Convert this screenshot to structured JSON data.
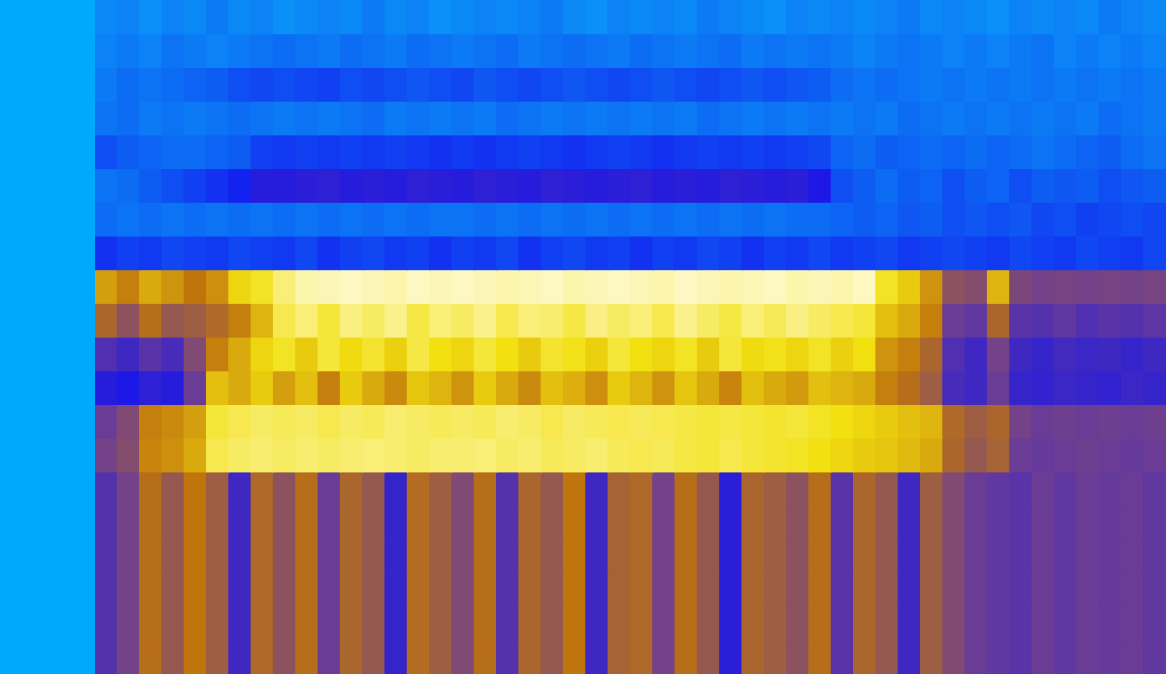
{
  "chart_data": {
    "type": "heatmap",
    "tick_labels": false,
    "grid": false,
    "cells": [
      [
        0.04,
        0.05,
        0.03,
        0.05,
        0.04,
        0.06,
        0.04,
        0.05,
        0.03,
        0.04,
        0.05,
        0.04,
        0.06,
        0.04,
        0.05,
        0.03,
        0.04,
        0.05,
        0.04,
        0.05,
        0.06,
        0.04,
        0.03,
        0.05,
        0.04,
        0.05,
        0.04,
        0.06,
        0.05,
        0.04,
        0.03,
        0.05,
        0.04,
        0.05,
        0.04,
        0.05,
        0.06,
        0.04,
        0.05,
        0.04,
        0.03,
        0.05,
        0.04,
        0.05,
        0.04,
        0.06,
        0.05,
        0.04
      ],
      [
        0.05,
        0.06,
        0.05,
        0.07,
        0.06,
        0.05,
        0.06,
        0.07,
        0.08,
        0.07,
        0.06,
        0.08,
        0.07,
        0.06,
        0.08,
        0.07,
        0.06,
        0.07,
        0.08,
        0.06,
        0.07,
        0.08,
        0.07,
        0.06,
        0.08,
        0.07,
        0.06,
        0.07,
        0.08,
        0.06,
        0.07,
        0.06,
        0.07,
        0.06,
        0.05,
        0.06,
        0.07,
        0.06,
        0.05,
        0.06,
        0.05,
        0.06,
        0.07,
        0.05,
        0.06,
        0.05,
        0.06,
        0.05
      ],
      [
        0.06,
        0.08,
        0.07,
        0.08,
        0.09,
        0.1,
        0.12,
        0.13,
        0.12,
        0.13,
        0.14,
        0.12,
        0.13,
        0.12,
        0.11,
        0.12,
        0.13,
        0.11,
        0.12,
        0.13,
        0.12,
        0.11,
        0.12,
        0.13,
        0.12,
        0.11,
        0.12,
        0.13,
        0.12,
        0.11,
        0.12,
        0.11,
        0.1,
        0.08,
        0.07,
        0.08,
        0.07,
        0.06,
        0.07,
        0.06,
        0.07,
        0.06,
        0.07,
        0.06,
        0.07,
        0.06,
        0.07,
        0.06
      ],
      [
        0.07,
        0.08,
        0.06,
        0.07,
        0.06,
        0.07,
        0.08,
        0.07,
        0.06,
        0.07,
        0.06,
        0.07,
        0.08,
        0.06,
        0.07,
        0.06,
        0.07,
        0.06,
        0.08,
        0.07,
        0.06,
        0.07,
        0.06,
        0.07,
        0.06,
        0.07,
        0.06,
        0.08,
        0.07,
        0.06,
        0.07,
        0.06,
        0.07,
        0.06,
        0.07,
        0.06,
        0.08,
        0.07,
        0.06,
        0.07,
        0.06,
        0.07,
        0.06,
        0.07,
        0.06,
        0.08,
        0.07,
        0.06
      ],
      [
        0.12,
        0.1,
        0.09,
        0.08,
        0.08,
        0.09,
        0.1,
        0.14,
        0.15,
        0.14,
        0.15,
        0.14,
        0.15,
        0.14,
        0.15,
        0.16,
        0.15,
        0.16,
        0.15,
        0.14,
        0.15,
        0.16,
        0.15,
        0.14,
        0.15,
        0.16,
        0.15,
        0.14,
        0.15,
        0.14,
        0.15,
        0.14,
        0.13,
        0.09,
        0.08,
        0.1,
        0.09,
        0.08,
        0.09,
        0.08,
        0.09,
        0.08,
        0.07,
        0.08,
        0.09,
        0.1,
        0.08,
        0.07
      ],
      [
        0.07,
        0.08,
        0.1,
        0.12,
        0.14,
        0.16,
        0.18,
        0.24,
        0.24,
        0.25,
        0.26,
        0.24,
        0.25,
        0.24,
        0.26,
        0.25,
        0.24,
        0.26,
        0.25,
        0.24,
        0.26,
        0.25,
        0.24,
        0.25,
        0.26,
        0.24,
        0.25,
        0.24,
        0.26,
        0.25,
        0.24,
        0.25,
        0.22,
        0.12,
        0.1,
        0.08,
        0.1,
        0.09,
        0.12,
        0.1,
        0.09,
        0.12,
        0.1,
        0.11,
        0.1,
        0.12,
        0.11,
        0.1
      ],
      [
        0.08,
        0.07,
        0.08,
        0.07,
        0.08,
        0.07,
        0.08,
        0.07,
        0.08,
        0.07,
        0.08,
        0.07,
        0.08,
        0.07,
        0.08,
        0.07,
        0.07,
        0.08,
        0.07,
        0.08,
        0.07,
        0.08,
        0.07,
        0.08,
        0.07,
        0.08,
        0.07,
        0.08,
        0.07,
        0.08,
        0.07,
        0.08,
        0.08,
        0.09,
        0.1,
        0.09,
        0.11,
        0.1,
        0.12,
        0.11,
        0.12,
        0.11,
        0.13,
        0.12,
        0.14,
        0.13,
        0.12,
        0.13
      ],
      [
        0.16,
        0.14,
        0.15,
        0.13,
        0.14,
        0.15,
        0.13,
        0.14,
        0.15,
        0.13,
        0.16,
        0.14,
        0.13,
        0.15,
        0.14,
        0.16,
        0.14,
        0.15,
        0.13,
        0.16,
        0.14,
        0.13,
        0.15,
        0.14,
        0.16,
        0.14,
        0.15,
        0.13,
        0.14,
        0.16,
        0.14,
        0.15,
        0.13,
        0.15,
        0.14,
        0.13,
        0.15,
        0.14,
        0.13,
        0.14,
        0.15,
        0.13,
        0.14,
        0.15,
        0.13,
        0.14,
        0.15,
        0.13
      ],
      [
        0.68,
        0.62,
        0.7,
        0.66,
        0.6,
        0.65,
        0.78,
        0.82,
        0.9,
        0.95,
        0.96,
        0.97,
        0.96,
        0.95,
        0.97,
        0.96,
        0.97,
        0.96,
        0.95,
        0.96,
        0.97,
        0.95,
        0.96,
        0.97,
        0.96,
        0.95,
        0.97,
        0.96,
        0.95,
        0.96,
        0.97,
        0.95,
        0.96,
        0.95,
        0.97,
        0.82,
        0.76,
        0.66,
        0.48,
        0.46,
        0.72,
        0.44,
        0.42,
        0.43,
        0.42,
        0.43,
        0.42,
        0.43
      ],
      [
        0.55,
        0.48,
        0.58,
        0.5,
        0.52,
        0.56,
        0.62,
        0.72,
        0.86,
        0.9,
        0.84,
        0.91,
        0.88,
        0.92,
        0.85,
        0.9,
        0.88,
        0.92,
        0.86,
        0.9,
        0.89,
        0.85,
        0.91,
        0.88,
        0.9,
        0.86,
        0.92,
        0.88,
        0.85,
        0.9,
        0.87,
        0.91,
        0.88,
        0.86,
        0.84,
        0.74,
        0.7,
        0.62,
        0.4,
        0.38,
        0.55,
        0.36,
        0.35,
        0.38,
        0.34,
        0.36,
        0.35,
        0.37
      ],
      [
        0.34,
        0.3,
        0.36,
        0.32,
        0.45,
        0.62,
        0.7,
        0.78,
        0.82,
        0.76,
        0.84,
        0.79,
        0.83,
        0.77,
        0.85,
        0.8,
        0.78,
        0.84,
        0.8,
        0.76,
        0.83,
        0.81,
        0.77,
        0.84,
        0.8,
        0.78,
        0.82,
        0.76,
        0.84,
        0.79,
        0.81,
        0.78,
        0.82,
        0.77,
        0.8,
        0.66,
        0.62,
        0.55,
        0.34,
        0.3,
        0.42,
        0.3,
        0.28,
        0.31,
        0.29,
        0.3,
        0.28,
        0.3
      ],
      [
        0.24,
        0.22,
        0.26,
        0.24,
        0.4,
        0.74,
        0.7,
        0.76,
        0.68,
        0.74,
        0.62,
        0.76,
        0.7,
        0.64,
        0.75,
        0.72,
        0.66,
        0.76,
        0.7,
        0.64,
        0.74,
        0.71,
        0.65,
        0.76,
        0.72,
        0.66,
        0.75,
        0.7,
        0.63,
        0.74,
        0.7,
        0.67,
        0.74,
        0.72,
        0.7,
        0.62,
        0.58,
        0.52,
        0.32,
        0.3,
        0.4,
        0.28,
        0.27,
        0.29,
        0.28,
        0.27,
        0.29,
        0.28
      ],
      [
        0.4,
        0.45,
        0.62,
        0.64,
        0.68,
        0.84,
        0.86,
        0.88,
        0.87,
        0.88,
        0.86,
        0.88,
        0.87,
        0.89,
        0.88,
        0.87,
        0.88,
        0.87,
        0.89,
        0.88,
        0.86,
        0.88,
        0.87,
        0.86,
        0.87,
        0.86,
        0.85,
        0.84,
        0.85,
        0.84,
        0.83,
        0.84,
        0.82,
        0.8,
        0.78,
        0.76,
        0.74,
        0.72,
        0.56,
        0.52,
        0.55,
        0.42,
        0.4,
        0.41,
        0.4,
        0.41,
        0.4,
        0.41
      ],
      [
        0.42,
        0.46,
        0.63,
        0.65,
        0.7,
        0.86,
        0.88,
        0.89,
        0.88,
        0.89,
        0.88,
        0.89,
        0.9,
        0.89,
        0.88,
        0.89,
        0.89,
        0.9,
        0.88,
        0.89,
        0.87,
        0.88,
        0.89,
        0.87,
        0.86,
        0.87,
        0.85,
        0.84,
        0.86,
        0.84,
        0.83,
        0.82,
        0.8,
        0.78,
        0.76,
        0.75,
        0.73,
        0.7,
        0.55,
        0.5,
        0.54,
        0.4,
        0.39,
        0.4,
        0.41,
        0.4,
        0.39,
        0.4
      ],
      [
        0.35,
        0.42,
        0.58,
        0.5,
        0.6,
        0.52,
        0.3,
        0.56,
        0.48,
        0.58,
        0.4,
        0.55,
        0.5,
        0.28,
        0.57,
        0.52,
        0.45,
        0.58,
        0.35,
        0.55,
        0.5,
        0.6,
        0.3,
        0.54,
        0.56,
        0.42,
        0.58,
        0.5,
        0.25,
        0.55,
        0.52,
        0.48,
        0.58,
        0.36,
        0.55,
        0.5,
        0.3,
        0.52,
        0.45,
        0.4,
        0.38,
        0.36,
        0.4,
        0.38,
        0.4,
        0.39,
        0.4,
        0.38
      ],
      [
        0.35,
        0.42,
        0.58,
        0.5,
        0.6,
        0.52,
        0.3,
        0.56,
        0.48,
        0.58,
        0.4,
        0.55,
        0.5,
        0.28,
        0.57,
        0.52,
        0.45,
        0.58,
        0.35,
        0.55,
        0.5,
        0.6,
        0.3,
        0.54,
        0.56,
        0.42,
        0.58,
        0.5,
        0.25,
        0.55,
        0.52,
        0.48,
        0.58,
        0.36,
        0.55,
        0.5,
        0.3,
        0.52,
        0.45,
        0.4,
        0.38,
        0.36,
        0.4,
        0.38,
        0.4,
        0.39,
        0.4,
        0.38
      ],
      [
        0.35,
        0.42,
        0.58,
        0.5,
        0.6,
        0.52,
        0.3,
        0.56,
        0.48,
        0.58,
        0.4,
        0.55,
        0.5,
        0.28,
        0.57,
        0.52,
        0.45,
        0.58,
        0.35,
        0.55,
        0.5,
        0.6,
        0.3,
        0.54,
        0.56,
        0.42,
        0.58,
        0.5,
        0.25,
        0.55,
        0.52,
        0.48,
        0.58,
        0.36,
        0.55,
        0.5,
        0.3,
        0.52,
        0.45,
        0.4,
        0.38,
        0.36,
        0.4,
        0.38,
        0.4,
        0.39,
        0.4,
        0.38
      ],
      [
        0.35,
        0.42,
        0.58,
        0.5,
        0.6,
        0.52,
        0.3,
        0.56,
        0.48,
        0.58,
        0.4,
        0.55,
        0.5,
        0.28,
        0.57,
        0.52,
        0.45,
        0.58,
        0.35,
        0.55,
        0.5,
        0.6,
        0.3,
        0.54,
        0.56,
        0.42,
        0.58,
        0.5,
        0.25,
        0.55,
        0.52,
        0.48,
        0.58,
        0.36,
        0.55,
        0.5,
        0.3,
        0.52,
        0.45,
        0.4,
        0.38,
        0.36,
        0.4,
        0.38,
        0.4,
        0.39,
        0.4,
        0.38
      ],
      [
        0.35,
        0.42,
        0.58,
        0.5,
        0.6,
        0.52,
        0.3,
        0.56,
        0.48,
        0.58,
        0.4,
        0.55,
        0.5,
        0.28,
        0.57,
        0.52,
        0.45,
        0.58,
        0.35,
        0.55,
        0.5,
        0.6,
        0.3,
        0.54,
        0.56,
        0.42,
        0.58,
        0.5,
        0.25,
        0.55,
        0.52,
        0.48,
        0.58,
        0.36,
        0.55,
        0.5,
        0.3,
        0.52,
        0.45,
        0.4,
        0.38,
        0.36,
        0.4,
        0.38,
        0.4,
        0.39,
        0.4,
        0.38
      ],
      [
        0.35,
        0.42,
        0.58,
        0.5,
        0.6,
        0.52,
        0.3,
        0.56,
        0.48,
        0.58,
        0.4,
        0.55,
        0.5,
        0.28,
        0.57,
        0.52,
        0.45,
        0.58,
        0.35,
        0.55,
        0.5,
        0.6,
        0.3,
        0.54,
        0.56,
        0.42,
        0.58,
        0.5,
        0.25,
        0.55,
        0.52,
        0.48,
        0.58,
        0.36,
        0.55,
        0.5,
        0.3,
        0.52,
        0.45,
        0.4,
        0.38,
        0.36,
        0.4,
        0.38,
        0.4,
        0.39,
        0.4,
        0.38
      ]
    ]
  }
}
